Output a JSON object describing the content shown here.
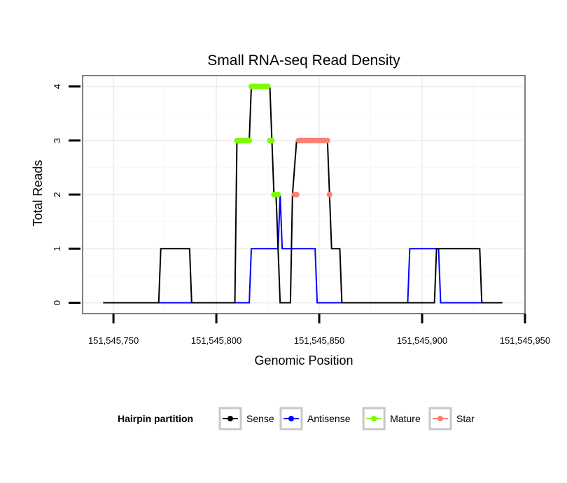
{
  "chart_data": {
    "type": "line",
    "title": "Small RNA-seq Read Density",
    "xlabel": "Genomic Position",
    "ylabel": "Total Reads",
    "xlim": [
      151545735,
      151545950
    ],
    "ylim": [
      -0.2,
      4.2
    ],
    "x_ticks": [
      151545750,
      151545800,
      151545850,
      151545900,
      151545950
    ],
    "x_tick_labels": [
      "151,545,750",
      "151,545,800",
      "151,545,850",
      "151,545,900",
      "151,545,950"
    ],
    "y_ticks": [
      0,
      1,
      2,
      3,
      4
    ],
    "y_tick_labels": [
      "0",
      "1",
      "2",
      "3",
      "4"
    ],
    "grid": true,
    "legend_position": "bottom",
    "legend_title": "Hairpin partition",
    "series": [
      {
        "name": "Sense",
        "color": "#000000",
        "kind": "line",
        "points": [
          [
            151545745,
            0
          ],
          [
            151545772,
            0
          ],
          [
            151545773,
            1
          ],
          [
            151545787,
            1
          ],
          [
            151545788,
            0
          ],
          [
            151545809,
            0
          ],
          [
            151545810,
            3
          ],
          [
            151545816,
            3
          ],
          [
            151545817,
            4
          ],
          [
            151545826,
            4
          ],
          [
            151545827,
            3
          ],
          [
            151545828,
            2
          ],
          [
            151545829,
            2
          ],
          [
            151545830,
            1
          ],
          [
            151545831,
            0
          ],
          [
            151545836,
            0
          ],
          [
            151545837,
            2
          ],
          [
            151545839,
            3
          ],
          [
            151545854,
            3
          ],
          [
            151545855,
            2
          ],
          [
            151545856,
            1
          ],
          [
            151545860,
            1
          ],
          [
            151545861,
            0
          ],
          [
            151545906,
            0
          ],
          [
            151545907,
            1
          ],
          [
            151545928,
            1
          ],
          [
            151545929,
            0
          ],
          [
            151545939,
            0
          ]
        ]
      },
      {
        "name": "Antisense",
        "color": "#0000ff",
        "kind": "line",
        "points": [
          [
            151545745,
            0
          ],
          [
            151545816,
            0
          ],
          [
            151545817,
            1
          ],
          [
            151545830,
            1
          ],
          [
            151545831,
            2
          ],
          [
            151545832,
            1
          ],
          [
            151545848,
            1
          ],
          [
            151545849,
            0
          ],
          [
            151545893,
            0
          ],
          [
            151545894,
            1
          ],
          [
            151545908,
            1
          ],
          [
            151545909,
            0
          ],
          [
            151545939,
            0
          ]
        ]
      },
      {
        "name": "Mature",
        "color": "#7cfc00",
        "kind": "points",
        "points": [
          [
            151545810,
            3
          ],
          [
            151545811,
            3
          ],
          [
            151545812,
            3
          ],
          [
            151545813,
            3
          ],
          [
            151545814,
            3
          ],
          [
            151545815,
            3
          ],
          [
            151545816,
            3
          ],
          [
            151545817,
            4
          ],
          [
            151545818,
            4
          ],
          [
            151545819,
            4
          ],
          [
            151545820,
            4
          ],
          [
            151545821,
            4
          ],
          [
            151545822,
            4
          ],
          [
            151545823,
            4
          ],
          [
            151545824,
            4
          ],
          [
            151545825,
            4
          ],
          [
            151545826,
            3
          ],
          [
            151545827,
            3
          ],
          [
            151545828,
            2
          ],
          [
            151545829,
            2
          ],
          [
            151545830,
            2
          ]
        ]
      },
      {
        "name": "Star",
        "color": "#fa8072",
        "kind": "points",
        "points": [
          [
            151545838,
            2
          ],
          [
            151545839,
            2
          ],
          [
            151545840,
            3
          ],
          [
            151545841,
            3
          ],
          [
            151545842,
            3
          ],
          [
            151545843,
            3
          ],
          [
            151545844,
            3
          ],
          [
            151545845,
            3
          ],
          [
            151545846,
            3
          ],
          [
            151545847,
            3
          ],
          [
            151545848,
            3
          ],
          [
            151545849,
            3
          ],
          [
            151545850,
            3
          ],
          [
            151545851,
            3
          ],
          [
            151545852,
            3
          ],
          [
            151545853,
            3
          ],
          [
            151545854,
            3
          ],
          [
            151545855,
            2
          ]
        ]
      }
    ]
  }
}
